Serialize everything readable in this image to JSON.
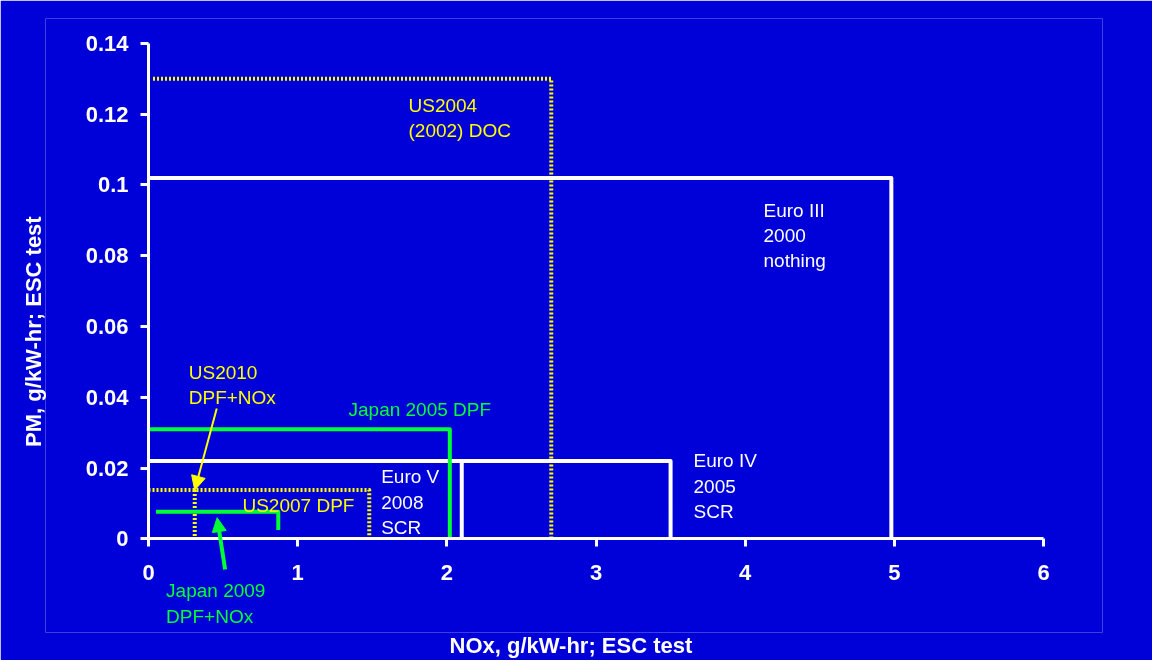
{
  "chart_data": {
    "type": "line",
    "xlabel": "NOx, g/kW-hr;  ESC test",
    "ylabel": "PM,  g/kW-hr;  ESC test",
    "xlim": [
      0,
      6
    ],
    "ylim": [
      0,
      0.14
    ],
    "xticks": [
      0,
      1,
      2,
      3,
      4,
      5,
      6
    ],
    "yticks": [
      0,
      0.02,
      0.04,
      0.06,
      0.08,
      0.1,
      0.12,
      0.14
    ],
    "grid": false,
    "marker": "none",
    "series": [
      {
        "color": "#ffff00",
        "line_style": "dotted",
        "x": [
          0.03,
          2.7,
          2.7
        ],
        "values": [
          0.13,
          0.13,
          0
        ]
      },
      {
        "color": "#ffffff",
        "line_style": "solid",
        "x": [
          0,
          4.98,
          4.98
        ],
        "values": [
          0.102,
          0.102,
          0
        ]
      },
      {
        "color": "#ffffff",
        "line_style": "solid",
        "x": [
          0,
          3.5,
          3.5
        ],
        "values": [
          0.022,
          0.022,
          0
        ]
      },
      {
        "color": "#ffffff",
        "line_style": "solid",
        "x": [
          2.1,
          2.1
        ],
        "values": [
          0.022,
          0
        ]
      },
      {
        "color": "#00ff33",
        "line_style": "solid",
        "x": [
          0,
          2.02,
          2.02
        ],
        "values": [
          0.031,
          0.031,
          0
        ]
      },
      {
        "color": "#ffff00",
        "line_style": "dotted",
        "x": [
          0,
          1.48,
          1.48
        ],
        "values": [
          0.0138,
          0.0138,
          0
        ]
      },
      {
        "color": "#ffff00",
        "line_style": "dotted",
        "x": [
          0.31,
          0.31
        ],
        "values": [
          0.0138,
          0
        ]
      },
      {
        "color": "#00ff33",
        "line_style": "solid",
        "x": [
          0.05,
          0.87,
          0.87
        ],
        "values": [
          0.0077,
          0.0077,
          0.0025
        ]
      }
    ],
    "annotations": [
      "US2004\n(2002) DOC",
      "Euro III\n2000\nnothing",
      "Euro IV\n2005\nSCR",
      {
        "text": "Euro V\n2008\nSCR",
        "x": 1.56,
        "y": 0.0205
      },
      "Japan 2005 DPF",
      {
        "text": "US2007 DPF",
        "x": 0.63,
        "y": 0.0125
      },
      {
        "text": "US2010\nDPF+NOx",
        "x": 0.31,
        "y": 0.0138
      },
      {
        "text": "Japan 2009\nDPF+NOx",
        "x": 0.46,
        "y": 0.006
      }
    ]
  }
}
